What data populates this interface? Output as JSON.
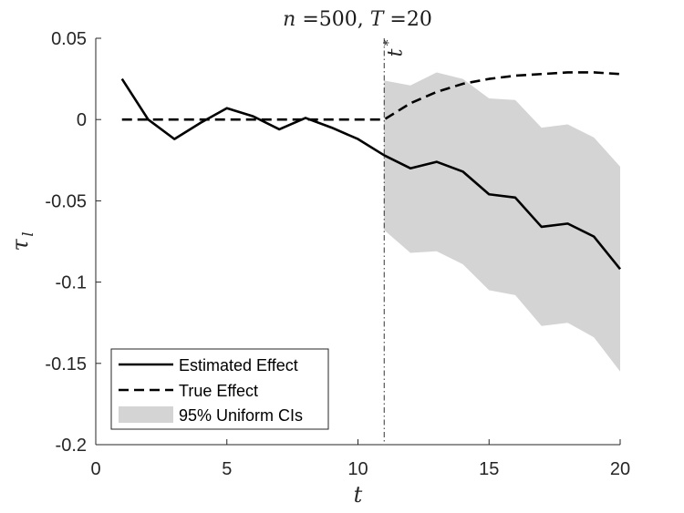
{
  "chart_data": {
    "type": "line",
    "title": "n =500, T =20",
    "xlabel": "t",
    "ylabel": "τ_l",
    "xlim": [
      0,
      20
    ],
    "ylim": [
      -0.2,
      0.05
    ],
    "xticks": [
      0,
      5,
      10,
      15,
      20
    ],
    "xtick_labels": [
      "0",
      "5",
      "10",
      "15",
      "20"
    ],
    "yticks": [
      0.05,
      0,
      -0.05,
      -0.1,
      -0.15,
      -0.2
    ],
    "ytick_labels": [
      "0.05",
      "0",
      "-0.05",
      "-0.1",
      "-0.15",
      "-0.2"
    ],
    "vline": {
      "x": 11,
      "label": "t*"
    },
    "series": [
      {
        "name": "Estimated Effect",
        "style": "solid",
        "x": [
          1,
          2,
          3,
          4,
          5,
          6,
          7,
          8,
          9,
          10,
          11,
          12,
          13,
          14,
          15,
          16,
          17,
          18,
          19,
          20
        ],
        "values": [
          0.025,
          0.0,
          -0.012,
          -0.002,
          0.007,
          0.002,
          -0.006,
          0.001,
          -0.005,
          -0.012,
          -0.022,
          -0.03,
          -0.026,
          -0.032,
          -0.046,
          -0.048,
          -0.066,
          -0.064,
          -0.072,
          -0.092
        ]
      },
      {
        "name": "True Effect",
        "style": "dashed",
        "x": [
          1,
          2,
          3,
          4,
          5,
          6,
          7,
          8,
          9,
          10,
          11,
          12,
          13,
          14,
          15,
          16,
          17,
          18,
          19,
          20
        ],
        "values": [
          0,
          0,
          0,
          0,
          0,
          0,
          0,
          0,
          0,
          0,
          0,
          0.01,
          0.017,
          0.022,
          0.025,
          0.027,
          0.028,
          0.029,
          0.029,
          0.028
        ]
      }
    ],
    "band": {
      "name": "95% Uniform CIs",
      "x": [
        11,
        12,
        13,
        14,
        15,
        16,
        17,
        18,
        19,
        20
      ],
      "upper": [
        0.024,
        0.021,
        0.029,
        0.025,
        0.013,
        0.012,
        -0.005,
        -0.003,
        -0.011,
        -0.029
      ],
      "lower": [
        -0.068,
        -0.082,
        -0.081,
        -0.089,
        -0.105,
        -0.108,
        -0.127,
        -0.125,
        -0.134,
        -0.155
      ]
    },
    "legend": {
      "position": "bottom-left",
      "entries": [
        "Estimated Effect",
        "True Effect",
        "95% Uniform CIs"
      ]
    }
  }
}
